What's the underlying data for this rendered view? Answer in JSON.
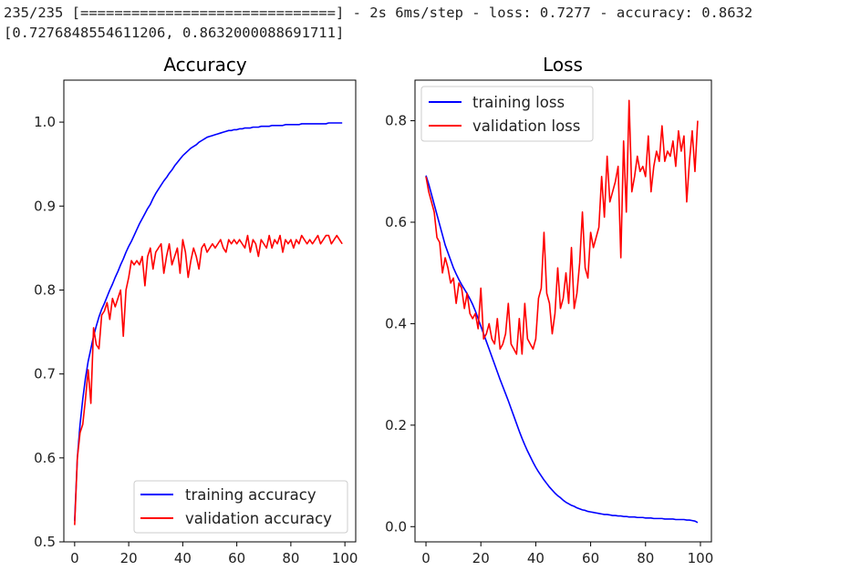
{
  "console": {
    "line1": "235/235 [==============================] - 2s 6ms/step - loss: 0.7277 - accuracy: 0.8632",
    "line2": "[0.7276848554611206, 0.8632000088691711]"
  },
  "colors": {
    "training": "#0000ff",
    "validation": "#ff0000",
    "axis": "#000000"
  },
  "chart_data": [
    {
      "type": "line",
      "title": "Accuracy",
      "xlabel": "",
      "ylabel": "",
      "xlim": [
        -4,
        104
      ],
      "ylim": [
        0.5,
        1.05
      ],
      "xticks": [
        0,
        20,
        40,
        60,
        80,
        100
      ],
      "xtick_labels": [
        "0",
        "20",
        "40",
        "60",
        "80",
        "100"
      ],
      "yticks": [
        0.5,
        0.6,
        0.7,
        0.8,
        0.9,
        1.0
      ],
      "ytick_labels": [
        "0.5",
        "0.6",
        "0.7",
        "0.8",
        "0.9",
        "1.0"
      ],
      "legend_position": "lower-right",
      "series": [
        {
          "name": "training accuracy",
          "color": "#0000ff",
          "values": [
            0.525,
            0.6,
            0.64,
            0.67,
            0.695,
            0.715,
            0.73,
            0.745,
            0.757,
            0.768,
            0.777,
            0.784,
            0.792,
            0.8,
            0.807,
            0.815,
            0.822,
            0.83,
            0.837,
            0.845,
            0.852,
            0.858,
            0.865,
            0.872,
            0.879,
            0.885,
            0.891,
            0.897,
            0.902,
            0.909,
            0.915,
            0.92,
            0.925,
            0.93,
            0.934,
            0.939,
            0.943,
            0.948,
            0.952,
            0.956,
            0.96,
            0.963,
            0.966,
            0.969,
            0.971,
            0.973,
            0.976,
            0.978,
            0.98,
            0.982,
            0.983,
            0.984,
            0.985,
            0.986,
            0.987,
            0.988,
            0.989,
            0.99,
            0.99,
            0.991,
            0.991,
            0.992,
            0.992,
            0.993,
            0.993,
            0.993,
            0.994,
            0.994,
            0.994,
            0.995,
            0.995,
            0.995,
            0.995,
            0.996,
            0.996,
            0.996,
            0.996,
            0.996,
            0.997,
            0.997,
            0.997,
            0.997,
            0.997,
            0.997,
            0.998,
            0.998,
            0.998,
            0.998,
            0.998,
            0.998,
            0.998,
            0.998,
            0.998,
            0.998,
            0.999,
            0.999,
            0.999,
            0.999,
            0.999,
            0.999
          ]
        },
        {
          "name": "validation accuracy",
          "color": "#ff0000",
          "values": [
            0.52,
            0.6,
            0.63,
            0.64,
            0.67,
            0.705,
            0.665,
            0.755,
            0.735,
            0.73,
            0.77,
            0.775,
            0.785,
            0.765,
            0.79,
            0.78,
            0.79,
            0.8,
            0.745,
            0.8,
            0.815,
            0.835,
            0.83,
            0.835,
            0.83,
            0.84,
            0.805,
            0.84,
            0.85,
            0.825,
            0.845,
            0.85,
            0.855,
            0.82,
            0.84,
            0.855,
            0.83,
            0.84,
            0.85,
            0.82,
            0.86,
            0.845,
            0.815,
            0.835,
            0.85,
            0.84,
            0.825,
            0.85,
            0.855,
            0.845,
            0.85,
            0.855,
            0.85,
            0.855,
            0.86,
            0.85,
            0.845,
            0.86,
            0.855,
            0.86,
            0.855,
            0.86,
            0.855,
            0.85,
            0.865,
            0.845,
            0.86,
            0.855,
            0.84,
            0.86,
            0.855,
            0.85,
            0.865,
            0.85,
            0.86,
            0.855,
            0.865,
            0.845,
            0.86,
            0.855,
            0.86,
            0.85,
            0.86,
            0.855,
            0.865,
            0.86,
            0.855,
            0.86,
            0.855,
            0.86,
            0.865,
            0.855,
            0.86,
            0.865,
            0.865,
            0.855,
            0.86,
            0.865,
            0.86,
            0.855
          ]
        }
      ]
    },
    {
      "type": "line",
      "title": "Loss",
      "xlabel": "",
      "ylabel": "",
      "xlim": [
        -4,
        104
      ],
      "ylim": [
        -0.03,
        0.88
      ],
      "xticks": [
        0,
        20,
        40,
        60,
        80,
        100
      ],
      "xtick_labels": [
        "0",
        "20",
        "40",
        "60",
        "80",
        "100"
      ],
      "yticks": [
        0.0,
        0.2,
        0.4,
        0.6,
        0.8
      ],
      "ytick_labels": [
        "0.0",
        "0.2",
        "0.4",
        "0.6",
        "0.8"
      ],
      "legend_position": "upper-left",
      "series": [
        {
          "name": "training loss",
          "color": "#0000ff",
          "values": [
            0.692,
            0.675,
            0.655,
            0.635,
            0.615,
            0.595,
            0.575,
            0.555,
            0.54,
            0.525,
            0.51,
            0.498,
            0.487,
            0.477,
            0.468,
            0.459,
            0.449,
            0.438,
            0.425,
            0.41,
            0.395,
            0.38,
            0.365,
            0.35,
            0.335,
            0.32,
            0.305,
            0.29,
            0.276,
            0.262,
            0.248,
            0.233,
            0.218,
            0.203,
            0.188,
            0.174,
            0.161,
            0.149,
            0.138,
            0.127,
            0.117,
            0.108,
            0.1,
            0.092,
            0.085,
            0.078,
            0.072,
            0.066,
            0.061,
            0.057,
            0.052,
            0.048,
            0.045,
            0.042,
            0.04,
            0.037,
            0.035,
            0.033,
            0.032,
            0.03,
            0.029,
            0.028,
            0.027,
            0.026,
            0.025,
            0.024,
            0.024,
            0.023,
            0.022,
            0.022,
            0.021,
            0.021,
            0.02,
            0.02,
            0.019,
            0.019,
            0.019,
            0.018,
            0.018,
            0.018,
            0.017,
            0.017,
            0.017,
            0.016,
            0.016,
            0.016,
            0.016,
            0.015,
            0.015,
            0.015,
            0.015,
            0.014,
            0.014,
            0.014,
            0.014,
            0.013,
            0.013,
            0.012,
            0.011,
            0.008
          ]
        },
        {
          "name": "validation loss",
          "color": "#ff0000",
          "values": [
            0.69,
            0.66,
            0.64,
            0.62,
            0.57,
            0.56,
            0.5,
            0.53,
            0.51,
            0.48,
            0.49,
            0.44,
            0.48,
            0.47,
            0.43,
            0.46,
            0.42,
            0.41,
            0.42,
            0.39,
            0.47,
            0.37,
            0.38,
            0.4,
            0.37,
            0.36,
            0.41,
            0.35,
            0.36,
            0.38,
            0.44,
            0.36,
            0.35,
            0.34,
            0.41,
            0.34,
            0.44,
            0.37,
            0.36,
            0.35,
            0.37,
            0.45,
            0.47,
            0.58,
            0.46,
            0.44,
            0.38,
            0.42,
            0.51,
            0.43,
            0.45,
            0.5,
            0.44,
            0.55,
            0.43,
            0.46,
            0.52,
            0.62,
            0.51,
            0.49,
            0.58,
            0.55,
            0.57,
            0.59,
            0.69,
            0.61,
            0.73,
            0.64,
            0.66,
            0.68,
            0.71,
            0.53,
            0.76,
            0.62,
            0.84,
            0.66,
            0.69,
            0.73,
            0.7,
            0.71,
            0.69,
            0.77,
            0.66,
            0.71,
            0.74,
            0.72,
            0.79,
            0.72,
            0.74,
            0.73,
            0.76,
            0.71,
            0.78,
            0.74,
            0.77,
            0.64,
            0.72,
            0.78,
            0.7,
            0.8
          ]
        }
      ]
    }
  ]
}
